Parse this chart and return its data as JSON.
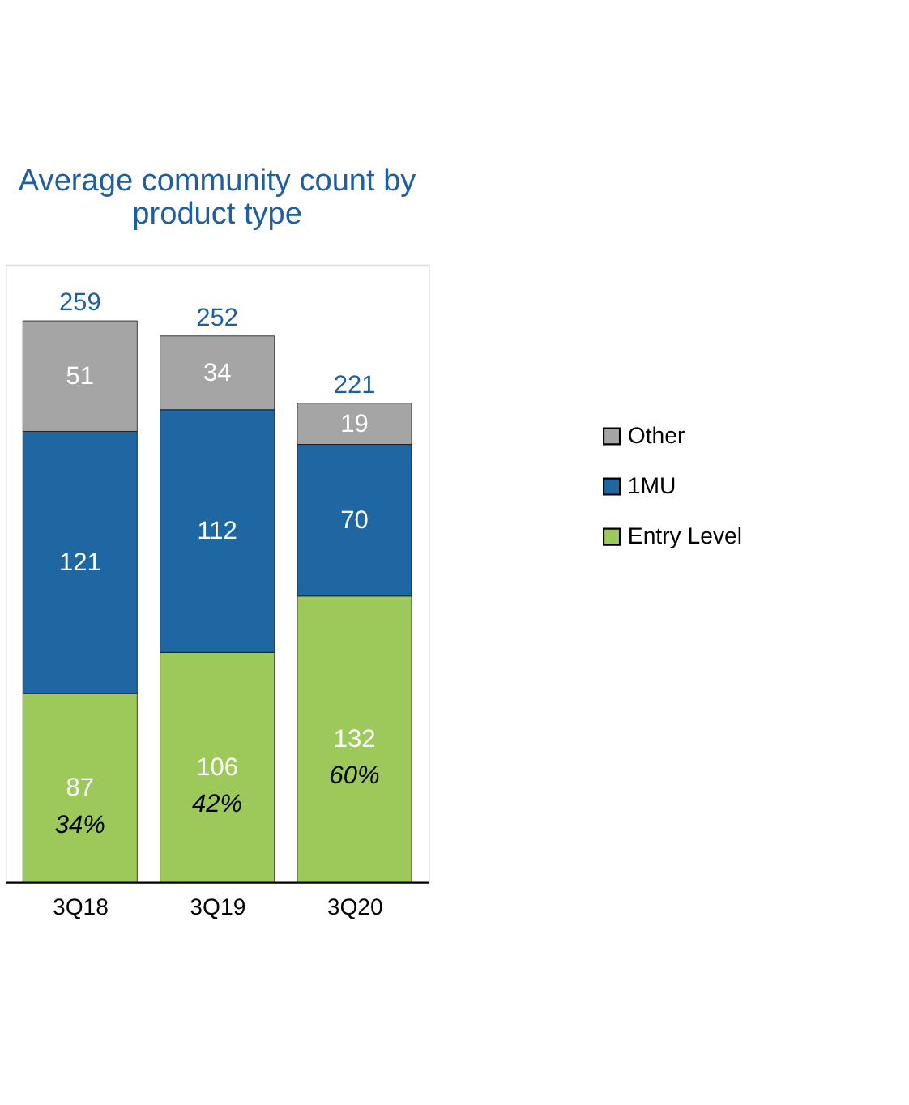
{
  "chart_data": {
    "type": "bar",
    "stacked": true,
    "title": "Average community count by product type",
    "categories": [
      "3Q18",
      "3Q19",
      "3Q20"
    ],
    "series": [
      {
        "name": "Entry Level",
        "color": "#9dc95a",
        "values": [
          87,
          106,
          132
        ]
      },
      {
        "name": "1MU",
        "color": "#1f67a3",
        "values": [
          121,
          112,
          70
        ]
      },
      {
        "name": "Other",
        "color": "#a5a5a5",
        "values": [
          51,
          34,
          19
        ]
      }
    ],
    "data_labels": true,
    "totals": [
      "259",
      "252",
      "221"
    ],
    "annotations": [
      "34%",
      "42%",
      "60%"
    ],
    "legend": "right",
    "grid": false
  }
}
